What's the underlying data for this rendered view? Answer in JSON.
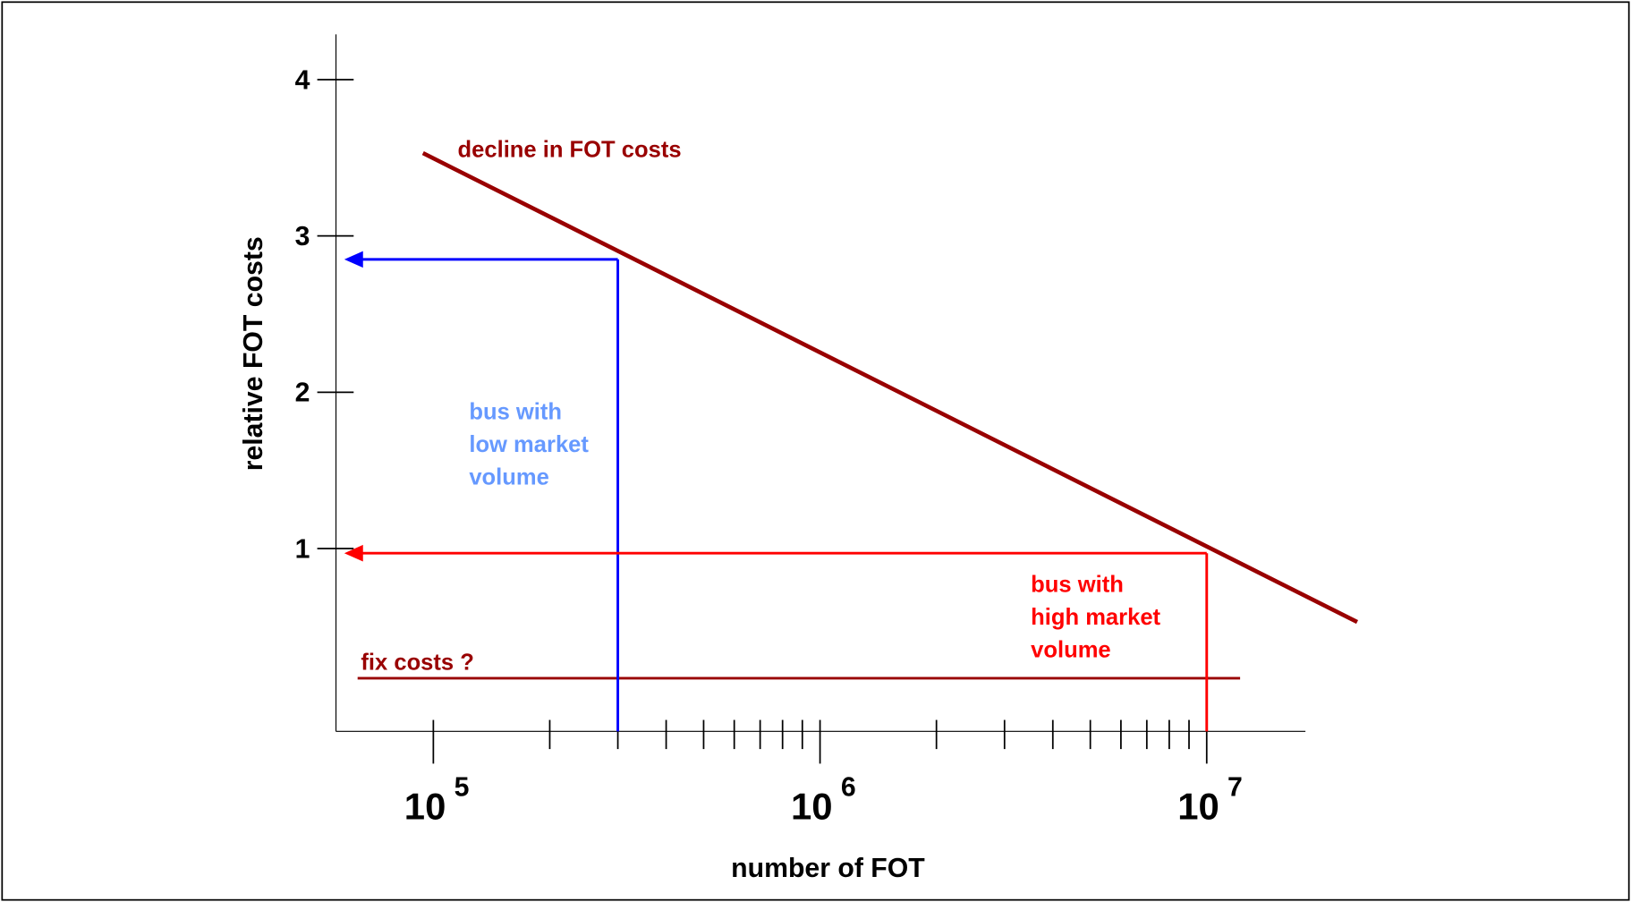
{
  "chart_data": {
    "type": "line",
    "xlabel": "number of FOT",
    "ylabel": "relative  FOT costs",
    "xscale": "log",
    "xlim": [
      56000,
      18000000
    ],
    "ylim": [
      -0.17,
      4.29
    ],
    "xticks": [
      {
        "value": 100000,
        "label": "10",
        "exponent": "5"
      },
      {
        "value": 1000000,
        "label": "10",
        "exponent": "6"
      },
      {
        "value": 10000000,
        "label": "10",
        "exponent": "7"
      }
    ],
    "xminor_ticks": [
      200000,
      300000,
      400000,
      500000,
      600000,
      700000,
      800000,
      900000,
      2000000,
      3000000,
      4000000,
      5000000,
      6000000,
      7000000,
      8000000,
      9000000
    ],
    "yticks": [
      1,
      2,
      3,
      4
    ],
    "series": [
      {
        "name": "decline in FOT costs",
        "color": "#990000",
        "x": [
          94000,
          24500000
        ],
        "values": [
          3.53,
          0.53
        ]
      },
      {
        "name": "fix costs ?",
        "color": "#990000",
        "x": [
          63700,
          12200000
        ],
        "values": [
          0.17,
          0.17
        ]
      }
    ],
    "markers": [
      {
        "label": [
          "bus with",
          "low market",
          "volume"
        ],
        "color": "#0000ff",
        "text_color": "#6699ff",
        "x": 300000,
        "value": 2.85
      },
      {
        "label": [
          "bus with",
          "high market",
          "volume"
        ],
        "color": "#ff0000",
        "text_color": "#ff0000",
        "x": 10000000,
        "value": 0.97
      }
    ]
  }
}
